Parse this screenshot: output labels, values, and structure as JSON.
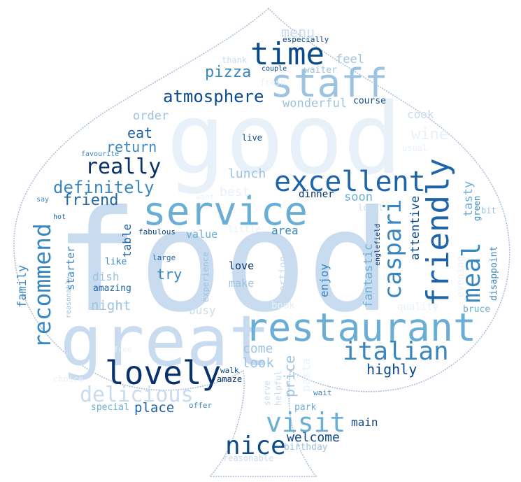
{
  "palette": {
    "w1": "#e8f1fa",
    "w2": "#c9dcef",
    "w3": "#9cc3e1",
    "w4": "#6aaed6",
    "w5": "#3a87c0",
    "w6": "#1e64aa",
    "w7": "#0b4a8b",
    "w8": "#08306b",
    "outline": "#a9bdd6"
  },
  "words": [
    {
      "id": "food",
      "text": "food"
    },
    {
      "id": "good",
      "text": "good"
    },
    {
      "id": "great",
      "text": "great"
    },
    {
      "id": "service",
      "text": "service"
    },
    {
      "id": "restaurant",
      "text": "restaurant"
    },
    {
      "id": "staff",
      "text": "staff"
    },
    {
      "id": "time",
      "text": "time"
    },
    {
      "id": "lovely",
      "text": "lovely"
    },
    {
      "id": "friendly",
      "text": "friendly"
    },
    {
      "id": "excellent",
      "text": "excellent"
    },
    {
      "id": "italian",
      "text": "italian"
    },
    {
      "id": "visit",
      "text": "visit"
    },
    {
      "id": "nice",
      "text": "nice"
    },
    {
      "id": "recommend",
      "text": "recommend"
    },
    {
      "id": "caspari",
      "text": "caspari"
    },
    {
      "id": "meal",
      "text": "meal"
    },
    {
      "id": "delicious",
      "text": "delicious"
    },
    {
      "id": "really",
      "text": "really"
    },
    {
      "id": "definitely",
      "text": "definitely"
    },
    {
      "id": "atmosphere",
      "text": "atmosphere"
    },
    {
      "id": "pizza",
      "text": "pizza"
    },
    {
      "id": "menu",
      "text": "menu"
    },
    {
      "id": "friend",
      "text": "friend"
    },
    {
      "id": "return",
      "text": "return"
    },
    {
      "id": "eat",
      "text": "eat"
    },
    {
      "id": "order",
      "text": "order"
    },
    {
      "id": "wonderful",
      "text": "wonderful"
    },
    {
      "id": "feel",
      "text": "feel"
    },
    {
      "id": "waiter",
      "text": "waiter"
    },
    {
      "id": "course",
      "text": "course"
    },
    {
      "id": "cook",
      "text": "cook"
    },
    {
      "id": "wine",
      "text": "wine"
    },
    {
      "id": "usual",
      "text": "usual"
    },
    {
      "id": "lunch",
      "text": "lunch"
    },
    {
      "id": "best",
      "text": "best"
    },
    {
      "id": "soon",
      "text": "soon"
    },
    {
      "id": "dinner",
      "text": "dinner"
    },
    {
      "id": "local",
      "text": "local"
    },
    {
      "id": "attentive",
      "text": "attentive"
    },
    {
      "id": "fantastic",
      "text": "fantastic"
    },
    {
      "id": "tasty",
      "text": "tasty"
    },
    {
      "id": "green",
      "text": "green"
    },
    {
      "id": "bit",
      "text": "bit"
    },
    {
      "id": "evening",
      "text": "evening"
    },
    {
      "id": "disappoint",
      "text": "disappoint"
    },
    {
      "id": "quality",
      "text": "quality"
    },
    {
      "id": "bruce",
      "text": "bruce"
    },
    {
      "id": "englefield",
      "text": "englefield"
    },
    {
      "id": "area",
      "text": "area"
    },
    {
      "id": "value",
      "text": "value"
    },
    {
      "id": "little",
      "text": "little"
    },
    {
      "id": "table",
      "text": "table"
    },
    {
      "id": "fabulous",
      "text": "fabulous"
    },
    {
      "id": "large",
      "text": "large"
    },
    {
      "id": "like",
      "text": "like"
    },
    {
      "id": "try",
      "text": "try"
    },
    {
      "id": "love",
      "text": "love"
    },
    {
      "id": "make",
      "text": "make"
    },
    {
      "id": "enjoy",
      "text": "enjoy"
    },
    {
      "id": "portion",
      "text": "portion"
    },
    {
      "id": "experience",
      "text": "experience"
    },
    {
      "id": "dish",
      "text": "dish"
    },
    {
      "id": "amazing",
      "text": "amazing"
    },
    {
      "id": "starter",
      "text": "starter"
    },
    {
      "id": "family",
      "text": "family"
    },
    {
      "id": "reasonably",
      "text": "reasonably"
    },
    {
      "id": "night",
      "text": "night"
    },
    {
      "id": "busy",
      "text": "busy"
    },
    {
      "id": "book",
      "text": "book"
    },
    {
      "id": "come",
      "text": "come"
    },
    {
      "id": "look",
      "text": "look"
    },
    {
      "id": "highly",
      "text": "highly"
    },
    {
      "id": "pasta",
      "text": "pasta"
    },
    {
      "id": "price",
      "text": "price"
    },
    {
      "id": "helpful",
      "text": "helpful"
    },
    {
      "id": "serve",
      "text": "serve"
    },
    {
      "id": "walk",
      "text": "walk"
    },
    {
      "id": "amaze",
      "text": "amaze"
    },
    {
      "id": "place",
      "text": "place"
    },
    {
      "id": "special",
      "text": "special"
    },
    {
      "id": "offer",
      "text": "offer"
    },
    {
      "id": "free",
      "text": "free"
    },
    {
      "id": "choice",
      "text": "choice"
    },
    {
      "id": "wait",
      "text": "wait"
    },
    {
      "id": "park",
      "text": "park"
    },
    {
      "id": "main",
      "text": "main"
    },
    {
      "id": "welcome",
      "text": "welcome"
    },
    {
      "id": "birthday",
      "text": "birthday"
    },
    {
      "id": "reasonable",
      "text": "reasonable"
    },
    {
      "id": "especially",
      "text": "especially"
    },
    {
      "id": "thank",
      "text": "thank"
    },
    {
      "id": "couple",
      "text": "couple"
    },
    {
      "id": "fresh",
      "text": "fresh"
    },
    {
      "id": "live",
      "text": "live"
    },
    {
      "id": "favourite",
      "text": "favourite"
    },
    {
      "id": "want",
      "text": "want"
    },
    {
      "id": "say",
      "text": "say"
    },
    {
      "id": "hot",
      "text": "hot"
    }
  ]
}
